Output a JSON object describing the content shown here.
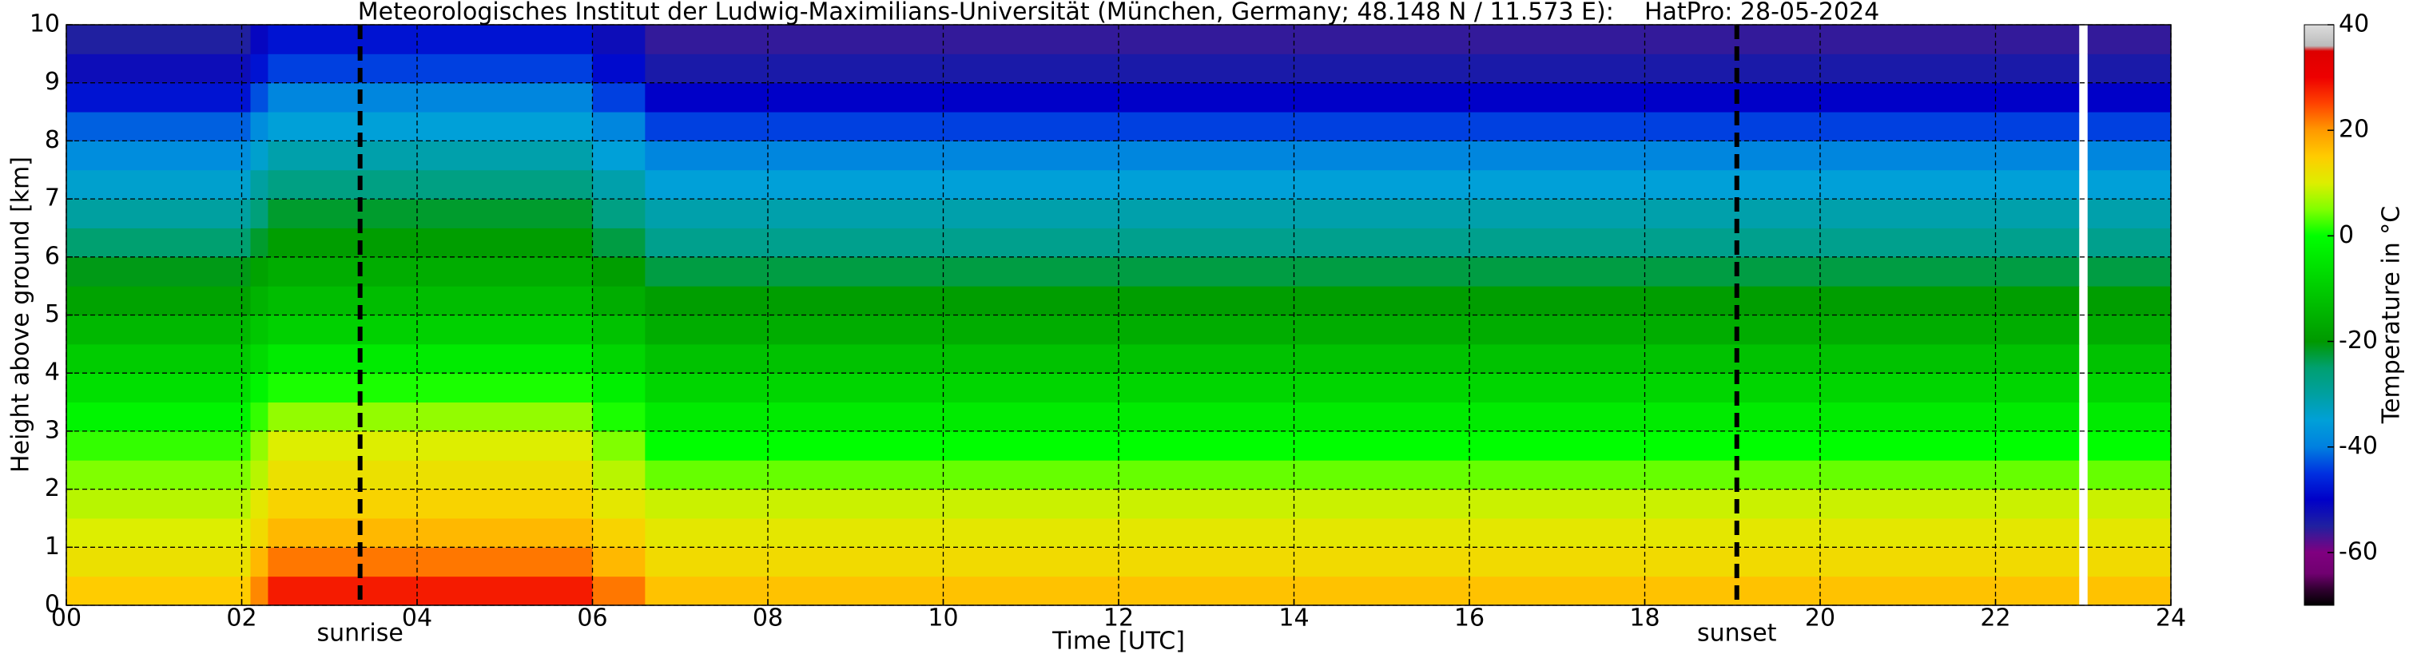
{
  "chart_data": {
    "type": "heatmap",
    "title": "Meteorologisches Institut der Ludwig-Maximilians-Universität (München, Germany; 48.148 N / 11.573 E):    HatPro: 28-05-2024",
    "x_label": "Time [UTC]",
    "y_label": "Height above ground [km]",
    "colorbar_label": "Temperature in °C",
    "x_edges": [
      0,
      2.1,
      2.3,
      6.0,
      6.6,
      22.95,
      23.05,
      24
    ],
    "y_edges": [
      0,
      0.5,
      1,
      1.5,
      2,
      2.5,
      3,
      3.5,
      4,
      4.5,
      5,
      5.5,
      6,
      6.5,
      7,
      7.5,
      8,
      8.5,
      9,
      9.5,
      10
    ],
    "values": [
      [
        15,
        21,
        28,
        22,
        16,
        null,
        16
      ],
      [
        12,
        17,
        22,
        17,
        13,
        null,
        13
      ],
      [
        10,
        13,
        17,
        14,
        11,
        null,
        11
      ],
      [
        8,
        11,
        14,
        11,
        9,
        null,
        9
      ],
      [
        5,
        8,
        12,
        8,
        4,
        null,
        4
      ],
      [
        2,
        6,
        10,
        5,
        0,
        null,
        0
      ],
      [
        -2,
        2,
        6,
        1,
        -4,
        null,
        -4
      ],
      [
        -6,
        -2,
        1,
        -3,
        -8,
        null,
        -8
      ],
      [
        -10,
        -7,
        -4,
        -8,
        -12,
        null,
        -12
      ],
      [
        -14,
        -11,
        -9,
        -12,
        -16,
        null,
        -16
      ],
      [
        -18,
        -15,
        -13,
        -16,
        -19,
        null,
        -19
      ],
      [
        -21,
        -18,
        -16,
        -19,
        -23,
        null,
        -23
      ],
      [
        -25,
        -22,
        -19,
        -23,
        -28,
        null,
        -28
      ],
      [
        -30,
        -26,
        -22,
        -27,
        -31,
        null,
        -31
      ],
      [
        -34,
        -30,
        -27,
        -31,
        -35,
        null,
        -35
      ],
      [
        -38,
        -34,
        -31,
        -35,
        -39,
        null,
        -39
      ],
      [
        -42,
        -38,
        -35,
        -39,
        -44,
        null,
        -44
      ],
      [
        -48,
        -43,
        -39,
        -44,
        -50,
        null,
        -50
      ],
      [
        -52,
        -48,
        -44,
        -49,
        -54,
        null,
        -54
      ],
      [
        -55,
        -51,
        -48,
        -52,
        -56,
        null,
        -56
      ]
    ],
    "xlim": [
      0,
      24
    ],
    "ylim": [
      0,
      10
    ],
    "xticks": [
      {
        "value": 0,
        "label": "00"
      },
      {
        "value": 2,
        "label": "02"
      },
      {
        "value": 4,
        "label": "04"
      },
      {
        "value": 6,
        "label": "06"
      },
      {
        "value": 8,
        "label": "08"
      },
      10,
      12,
      14,
      16,
      18,
      20,
      22,
      24
    ],
    "yticks": [
      0,
      1,
      2,
      3,
      4,
      5,
      6,
      7,
      8,
      9,
      10
    ],
    "clim": [
      -70,
      40
    ],
    "cticks": [
      -60,
      -40,
      -20,
      0,
      20,
      40
    ],
    "colormap": [
      [
        -70,
        "#000000"
      ],
      [
        -67,
        "#300030"
      ],
      [
        -64,
        "#700070"
      ],
      [
        -60,
        "#800080"
      ],
      [
        -55,
        "#2020a0"
      ],
      [
        -50,
        "#0000c8"
      ],
      [
        -45,
        "#0030e0"
      ],
      [
        -40,
        "#0080e0"
      ],
      [
        -35,
        "#00a0d8"
      ],
      [
        -30,
        "#00a0a0"
      ],
      [
        -25,
        "#00a070"
      ],
      [
        -20,
        "#009900"
      ],
      [
        -10,
        "#00cc00"
      ],
      [
        0,
        "#00ff00"
      ],
      [
        5,
        "#80ff00"
      ],
      [
        10,
        "#ddee00"
      ],
      [
        15,
        "#ffcc00"
      ],
      [
        20,
        "#ff9900"
      ],
      [
        25,
        "#ff4400"
      ],
      [
        30,
        "#ee0000"
      ],
      [
        35,
        "#dd0000"
      ],
      [
        36,
        "#bbbbbb"
      ],
      [
        40,
        "#dddddd"
      ]
    ],
    "grid": true,
    "annotations": [
      {
        "text": "sunrise",
        "x": 3.35
      },
      {
        "text": "sunset",
        "x": 19.05
      }
    ]
  }
}
